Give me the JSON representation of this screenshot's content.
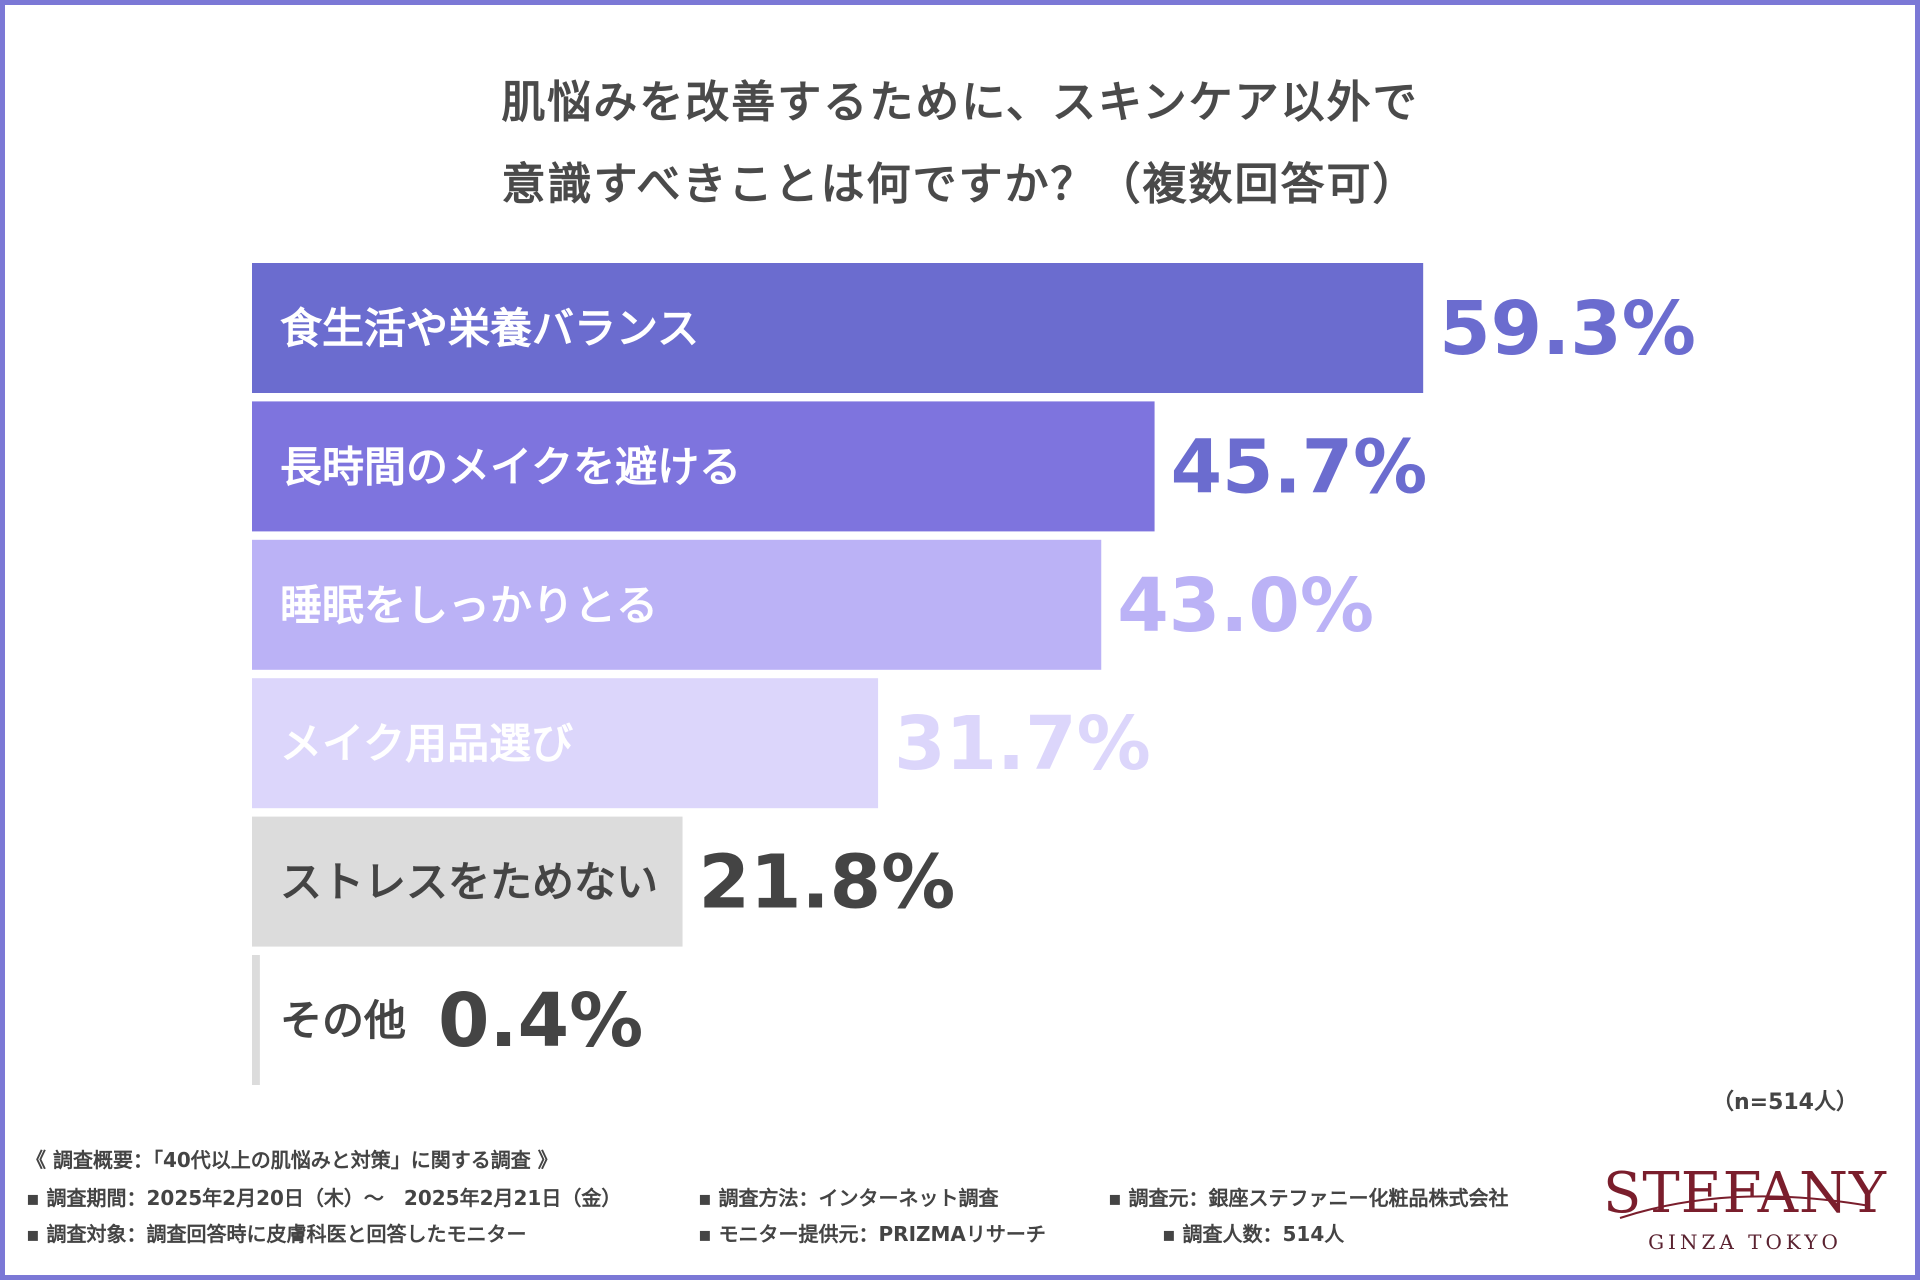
{
  "title": {
    "line1": "肌悩みを改善するために、スキンケア以外で",
    "line2": "意識すべきことは何ですか？（複数回答可）"
  },
  "chart_data": {
    "type": "bar",
    "orientation": "horizontal",
    "categories": [
      "食生活や栄養バランス",
      "長時間のメイクを避ける",
      "睡眠をしっかりとる",
      "メイク用品選び",
      "ストレスをためない",
      "その他"
    ],
    "values": [
      59.3,
      45.7,
      43.0,
      31.7,
      21.8,
      0.4
    ],
    "value_labels": [
      "59.3%",
      "45.7%",
      "43.0%",
      "31.7%",
      "21.8%",
      "0.4%"
    ],
    "colors": [
      "#6b6ccf",
      "#7e74de",
      "#bbb2f6",
      "#dcd6fb",
      "#dcdcdc",
      "#dcdcdc"
    ],
    "value_colors": [
      "#6b6ccf",
      "#6b6ccf",
      "#bbb2f6",
      "#dcd6fb",
      "#444444",
      "#444444"
    ],
    "label_colors": [
      "#ffffff",
      "#ffffff",
      "#ffffff",
      "#ffffff",
      "#444444",
      "#444444"
    ],
    "xlim": [
      0,
      100
    ],
    "grid": false,
    "legend": "none"
  },
  "sample_size": "（n=514人）",
  "notes": {
    "header": "《 調査概要：「40代以上の肌悩みと対策」に関する調査 》",
    "period": "▪ 調査期間：2025年2月20日（木）～　2025年2月21日（金）",
    "method": "▪ 調査方法：インターネット調査",
    "source": "▪ 調査元：銀座ステファニー化粧品株式会社",
    "target": "▪ 調査対象：調査回答時に皮膚科医と回答したモニター",
    "provider": "▪ モニター提供元：PRIZMAリサーチ",
    "count": "▪ 調査人数：514人"
  },
  "logo": {
    "brand": "STEFANY",
    "sub": "GINZA TOKYO",
    "color": "#7a1e2c"
  }
}
